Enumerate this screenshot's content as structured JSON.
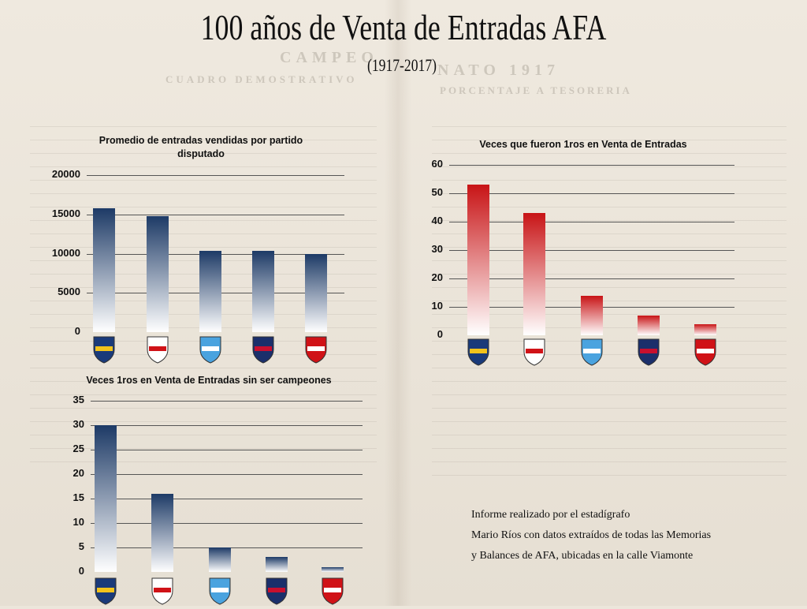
{
  "header": {
    "title": "100 años de Venta de Entradas AFA",
    "subtitle": "(1917-2017)"
  },
  "colors": {
    "blue_top": "#1d3a66",
    "blue_bottom": "#ffffff",
    "red_top": "#c81416",
    "red_bottom": "#ffffff"
  },
  "clubs": [
    {
      "icon": "boca-juniors-crest-icon",
      "label": "CABJ",
      "colors": [
        "#1a3a7a",
        "#f2c21b"
      ]
    },
    {
      "icon": "river-plate-crest-icon",
      "label": "CARP",
      "colors": [
        "#ffffff",
        "#d01217"
      ]
    },
    {
      "icon": "racing-club-crest-icon",
      "label": "RACING",
      "colors": [
        "#4aa3df",
        "#ffffff"
      ]
    },
    {
      "icon": "san-lorenzo-crest-icon",
      "label": "CASLA",
      "colors": [
        "#1b2f6b",
        "#c8102e"
      ]
    },
    {
      "icon": "independiente-crest-icon",
      "label": "CAI",
      "colors": [
        "#d01217",
        "#ffffff"
      ]
    }
  ],
  "chart_data": [
    {
      "type": "bar",
      "title": "Promedio de entradas vendidas por partido disputado",
      "categories": [
        "Boca Juniors",
        "River Plate",
        "Racing Club",
        "San Lorenzo",
        "Independiente"
      ],
      "values": [
        15800,
        14800,
        10400,
        10400,
        9900
      ],
      "ylim": [
        0,
        20000
      ],
      "yticks": [
        0,
        5000,
        10000,
        15000,
        20000
      ],
      "color_scheme": "blue",
      "grid": true
    },
    {
      "type": "bar",
      "title": "Veces que fueron 1ros en Venta de Entradas",
      "categories": [
        "Boca Juniors",
        "River Plate",
        "Racing Club",
        "San Lorenzo",
        "Independiente"
      ],
      "values": [
        53,
        43,
        14,
        7,
        4
      ],
      "ylim": [
        0,
        60
      ],
      "yticks": [
        0,
        10,
        20,
        30,
        40,
        50,
        60
      ],
      "color_scheme": "red",
      "grid": true
    },
    {
      "type": "bar",
      "title": "Veces 1ros en Venta de Entradas  sin ser campeones",
      "categories": [
        "Boca Juniors",
        "River Plate",
        "Racing Club",
        "San Lorenzo",
        "Independiente"
      ],
      "values": [
        30,
        16,
        5,
        3,
        1
      ],
      "ylim": [
        0,
        35
      ],
      "yticks": [
        0,
        5,
        10,
        15,
        20,
        25,
        30,
        35
      ],
      "color_scheme": "blue",
      "grid": true
    }
  ],
  "note": {
    "line1": "Informe realizado por el estadígrafo",
    "line2": "Mario Ríos con datos extraídos de todas las Memorias",
    "line3": "y Balances de AFA, ubicadas en la calle Viamonte"
  },
  "background": {
    "left_heading": "CAMPEO",
    "left_sub": "CUADRO DEMOSTRATIVO",
    "right_heading": "NATO 1917",
    "right_sub": "PORCENTAJE A TESORERIA"
  }
}
